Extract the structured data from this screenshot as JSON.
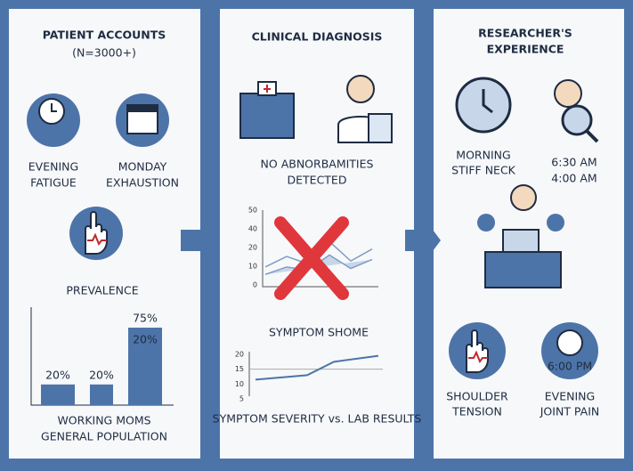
{
  "panels": [
    {
      "title": "PATIENT ACCOUNTS",
      "subtitle": "(N=3000+)",
      "icon_labels": [
        [
          "EVENING",
          "FATIGUE"
        ],
        [
          "MONDAY",
          "EXHAUSTION"
        ]
      ],
      "section": "PREVALENCE",
      "bars": {
        "values": [
          20,
          20,
          75
        ],
        "value_labels": [
          "20%",
          "20%",
          "75%"
        ],
        "inner_label": "20%"
      },
      "footer": [
        "WORKING MOMS",
        "GENERAL POPULATION"
      ]
    },
    {
      "title": "CLINICAL DIAGNOSIS",
      "note": [
        "NO ABNORBAMITIES",
        "DETECTED"
      ],
      "lab_chart": {
        "yticks": [
          50,
          40,
          20,
          10,
          0
        ],
        "series": [
          {
            "values": [
              12,
              19,
              14,
              29,
              16,
              24
            ]
          },
          {
            "values": [
              7,
              12,
              10,
              20,
              11,
              17
            ]
          }
        ]
      },
      "symptom_chart": {
        "title": "SYMPTOM SHOME",
        "yticks": [
          20,
          15,
          10,
          5
        ],
        "reference": 15,
        "values": [
          11.5,
          13,
          17.5,
          19.5
        ]
      },
      "footer": "SYMPTOM SEVERITY vs. LAB RESULTS"
    },
    {
      "title": [
        "RESEARCHER'S",
        "EXPERIENCE"
      ],
      "morning": [
        "MORNING",
        "STIFF NECK"
      ],
      "times": [
        "6:30 AM",
        "4:00 AM"
      ],
      "clock_label": "6:00 PM",
      "bottom_labels": [
        [
          "SHOULDER",
          "TENSION"
        ],
        [
          "EVENING",
          "JOINT PAIN"
        ]
      ]
    }
  ]
}
